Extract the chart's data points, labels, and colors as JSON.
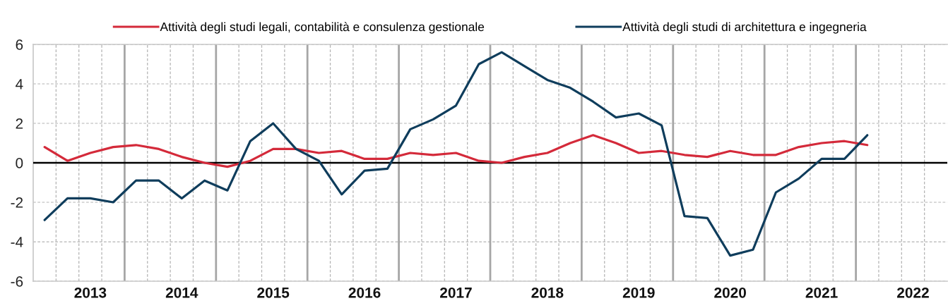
{
  "chart_data": {
    "type": "line",
    "categories": [
      null,
      null,
      "2013",
      null,
      null,
      null,
      "2014",
      null,
      null,
      null,
      "2015",
      null,
      null,
      null,
      "2016",
      null,
      null,
      null,
      "2017",
      null,
      null,
      null,
      "2018",
      null,
      null,
      null,
      "2019",
      null,
      null,
      null,
      "2020",
      null,
      null,
      null,
      "2021",
      null,
      null,
      null,
      "2022",
      null
    ],
    "series": [
      {
        "name": "Attività degli studi legali, contabilità e consulenza gestionale",
        "color": "#d42a3a",
        "values": [
          0.8,
          0.1,
          0.5,
          0.8,
          0.9,
          0.7,
          0.3,
          0.0,
          -0.2,
          0.1,
          0.7,
          0.7,
          0.5,
          0.6,
          0.2,
          0.2,
          0.5,
          0.4,
          0.5,
          0.1,
          0.0,
          0.3,
          0.5,
          1.0,
          1.4,
          1.0,
          0.5,
          0.6,
          0.4,
          0.3,
          0.6,
          0.4,
          0.4,
          0.8,
          1.0,
          1.1,
          0.9,
          null,
          null,
          null
        ]
      },
      {
        "name": "Attività degli studi di architettura e ingegneria",
        "color": "#0f3d5c",
        "values": [
          -2.9,
          -1.8,
          -1.8,
          -2.0,
          -0.9,
          -0.9,
          -1.8,
          -0.9,
          -1.4,
          1.1,
          2.0,
          0.7,
          0.1,
          -1.6,
          -0.4,
          -0.3,
          1.7,
          2.2,
          2.9,
          5.0,
          5.6,
          4.9,
          4.2,
          3.8,
          3.1,
          2.3,
          2.5,
          1.9,
          -2.7,
          -2.8,
          -4.7,
          -4.4,
          -1.5,
          -0.8,
          0.2,
          0.2,
          1.4,
          null,
          null,
          null
        ]
      }
    ],
    "ylim": [
      -6,
      6
    ],
    "yticks": [
      -6,
      -4,
      -2,
      0,
      2,
      4,
      6
    ],
    "ref_lines": [
      {
        "axis": "y",
        "value": 0,
        "color": "#000000"
      }
    ],
    "grid": true,
    "legend": "top"
  }
}
